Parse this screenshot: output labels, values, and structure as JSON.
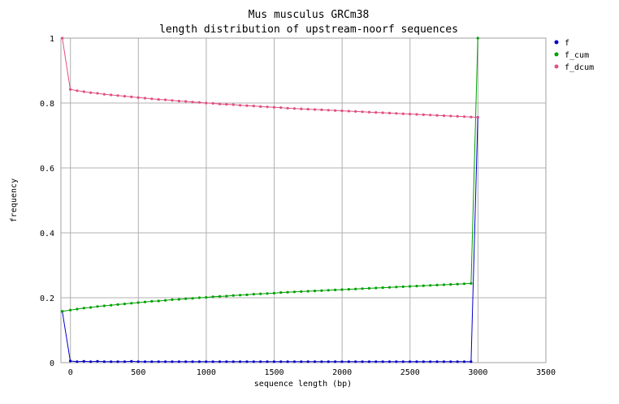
{
  "chart_data": {
    "type": "line",
    "title": "Mus musculus GRCm38",
    "subtitle": "length distribution of upstream-noorf sequences",
    "xlabel": "sequence length (bp)",
    "ylabel": "frequency",
    "xlim": [
      -70,
      3500
    ],
    "ylim": [
      0,
      1
    ],
    "xticks": [
      0,
      500,
      1000,
      1500,
      2000,
      2500,
      3000,
      3500
    ],
    "yticks": [
      0,
      0.2,
      0.4,
      0.6,
      0.8,
      1
    ],
    "xtick_labels": [
      "0",
      "500",
      "1000",
      "1500",
      "2000",
      "2500",
      "3000",
      "3500"
    ],
    "ytick_labels": [
      "0",
      "0.2",
      "0.4",
      "0.6",
      "0.8",
      "1"
    ],
    "grid": true,
    "legend_position": "top-right",
    "series": [
      {
        "name": "f",
        "color": "#0000cc",
        "x": [
          -60,
          -1,
          49,
          99,
          149,
          199,
          249,
          299,
          349,
          399,
          449,
          499,
          549,
          599,
          649,
          699,
          749,
          799,
          849,
          899,
          949,
          999,
          1049,
          1099,
          1149,
          1199,
          1249,
          1299,
          1349,
          1399,
          1449,
          1499,
          1549,
          1599,
          1649,
          1699,
          1749,
          1799,
          1849,
          1899,
          1949,
          1999,
          2049,
          2099,
          2149,
          2199,
          2249,
          2299,
          2349,
          2399,
          2449,
          2499,
          2549,
          2599,
          2649,
          2699,
          2749,
          2799,
          2849,
          2899,
          2949,
          2999
        ],
        "y": [
          0.158,
          0.005,
          0.003,
          0.004,
          0.003,
          0.004,
          0.003,
          0.003,
          0.003,
          0.003,
          0.004,
          0.003,
          0.003,
          0.003,
          0.003,
          0.003,
          0.003,
          0.003,
          0.003,
          0.003,
          0.003,
          0.003,
          0.003,
          0.003,
          0.003,
          0.003,
          0.003,
          0.003,
          0.003,
          0.003,
          0.003,
          0.003,
          0.003,
          0.003,
          0.003,
          0.003,
          0.003,
          0.003,
          0.003,
          0.003,
          0.003,
          0.003,
          0.003,
          0.003,
          0.003,
          0.003,
          0.003,
          0.003,
          0.003,
          0.003,
          0.003,
          0.003,
          0.003,
          0.003,
          0.003,
          0.003,
          0.003,
          0.003,
          0.003,
          0.003,
          0.003,
          0.756
        ]
      },
      {
        "name": "f_cum",
        "color": "#00a000",
        "x": [
          -60,
          -1,
          49,
          99,
          149,
          199,
          249,
          299,
          349,
          399,
          449,
          499,
          549,
          599,
          649,
          699,
          749,
          799,
          849,
          899,
          949,
          999,
          1049,
          1099,
          1149,
          1199,
          1249,
          1299,
          1349,
          1399,
          1449,
          1499,
          1549,
          1599,
          1649,
          1699,
          1749,
          1799,
          1849,
          1899,
          1949,
          1999,
          2049,
          2099,
          2149,
          2199,
          2249,
          2299,
          2349,
          2399,
          2449,
          2499,
          2549,
          2599,
          2649,
          2699,
          2749,
          2799,
          2849,
          2899,
          2949,
          2999
        ],
        "y": [
          0.158,
          0.162,
          0.165,
          0.168,
          0.17,
          0.173,
          0.175,
          0.177,
          0.179,
          0.181,
          0.183,
          0.185,
          0.187,
          0.189,
          0.19,
          0.192,
          0.194,
          0.195,
          0.197,
          0.198,
          0.2,
          0.201,
          0.203,
          0.204,
          0.205,
          0.207,
          0.208,
          0.209,
          0.211,
          0.212,
          0.213,
          0.214,
          0.216,
          0.217,
          0.218,
          0.219,
          0.22,
          0.221,
          0.222,
          0.223,
          0.224,
          0.225,
          0.226,
          0.227,
          0.228,
          0.229,
          0.23,
          0.231,
          0.232,
          0.233,
          0.234,
          0.235,
          0.236,
          0.237,
          0.238,
          0.239,
          0.24,
          0.241,
          0.242,
          0.243,
          0.244,
          1.0
        ]
      },
      {
        "name": "f_dcum",
        "color": "#e05080",
        "x": [
          -60,
          -1,
          49,
          99,
          149,
          199,
          249,
          299,
          349,
          399,
          449,
          499,
          549,
          599,
          649,
          699,
          749,
          799,
          849,
          899,
          949,
          999,
          1049,
          1099,
          1149,
          1199,
          1249,
          1299,
          1349,
          1399,
          1449,
          1499,
          1549,
          1599,
          1649,
          1699,
          1749,
          1799,
          1849,
          1899,
          1949,
          1999,
          2049,
          2099,
          2149,
          2199,
          2249,
          2299,
          2349,
          2399,
          2449,
          2499,
          2549,
          2599,
          2649,
          2699,
          2749,
          2799,
          2849,
          2899,
          2949,
          2999
        ],
        "y": [
          1.0,
          0.842,
          0.838,
          0.835,
          0.832,
          0.83,
          0.827,
          0.825,
          0.823,
          0.821,
          0.819,
          0.817,
          0.815,
          0.813,
          0.811,
          0.81,
          0.808,
          0.806,
          0.805,
          0.803,
          0.802,
          0.8,
          0.799,
          0.797,
          0.796,
          0.795,
          0.793,
          0.792,
          0.791,
          0.789,
          0.788,
          0.787,
          0.786,
          0.784,
          0.783,
          0.782,
          0.781,
          0.78,
          0.779,
          0.778,
          0.777,
          0.776,
          0.775,
          0.774,
          0.773,
          0.772,
          0.771,
          0.77,
          0.769,
          0.768,
          0.767,
          0.766,
          0.765,
          0.764,
          0.763,
          0.762,
          0.761,
          0.76,
          0.759,
          0.758,
          0.757,
          0.756
        ]
      }
    ]
  }
}
